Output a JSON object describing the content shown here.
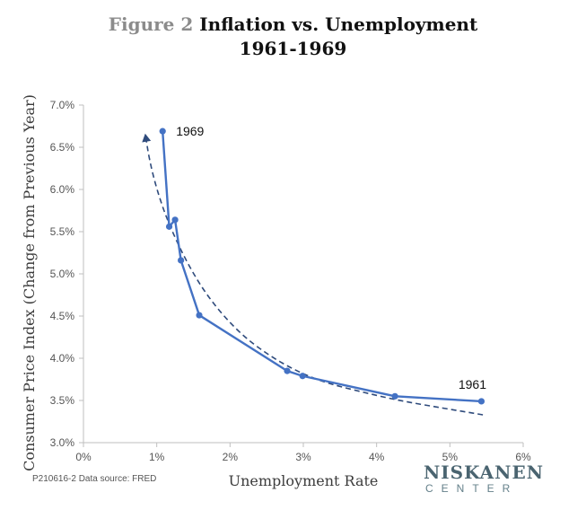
{
  "chart_data": {
    "type": "line",
    "title_prefix": "Figure 2",
    "title_main": "Inflation vs. Unemployment",
    "subtitle": "1961-1969",
    "xlabel": "Unemployment Rate",
    "ylabel": "Consumer Price Index (Change from Previous Year)",
    "xlim": [
      0,
      6
    ],
    "ylim": [
      3.0,
      7.0
    ],
    "xticks": [
      "0%",
      "1%",
      "2%",
      "3%",
      "4%",
      "5%",
      "6%"
    ],
    "yticks": [
      "3.0%",
      "3.5%",
      "4.0%",
      "4.5%",
      "5.0%",
      "5.5%",
      "6.0%",
      "6.5%",
      "7.0%"
    ],
    "grid": false,
    "legend": "none",
    "series": [
      {
        "x": [
          1.08,
          1.17,
          1.25,
          1.33,
          1.58,
          2.78,
          2.99,
          4.25,
          5.43
        ],
        "y": [
          6.69,
          5.56,
          5.64,
          5.16,
          4.51,
          3.85,
          3.79,
          3.55,
          3.49
        ],
        "color": "#4472c4"
      },
      {
        "style": "dashed",
        "color": "#2f4b7c",
        "x": [
          5.45,
          4.9,
          4.3,
          3.8,
          3.3,
          2.9,
          2.5,
          2.1,
          1.7,
          1.4,
          1.15,
          1.0,
          0.9,
          0.85
        ],
        "y": [
          3.33,
          3.41,
          3.5,
          3.6,
          3.71,
          3.85,
          4.05,
          4.32,
          4.72,
          5.15,
          5.62,
          6.0,
          6.35,
          6.62
        ]
      }
    ],
    "annotations": [
      {
        "text": "1969",
        "x": 1.08,
        "y": 6.69
      },
      {
        "text": "1961",
        "x": 5.43,
        "y": 3.49
      }
    ],
    "source_note": "P210616-2  Data source: FRED"
  },
  "logo": {
    "top": "NISKANEN",
    "bottom": "CENTER"
  }
}
